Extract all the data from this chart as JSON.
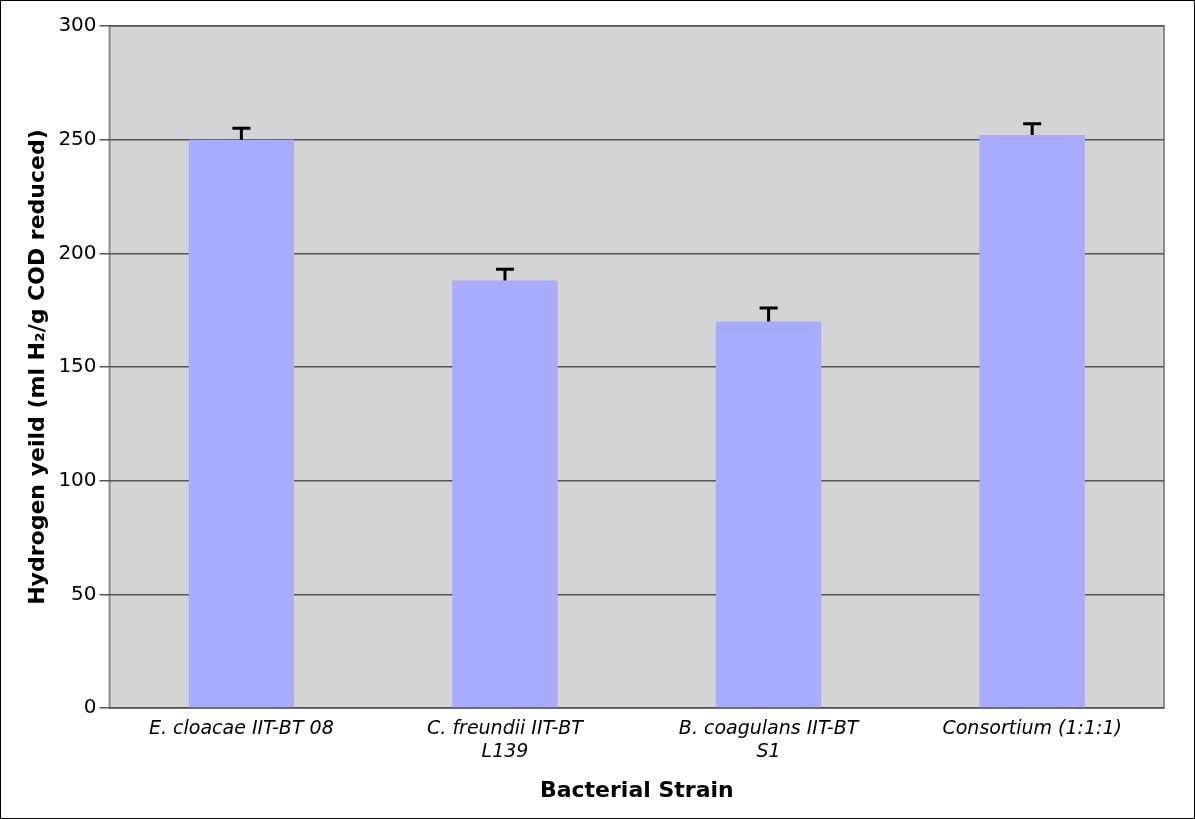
{
  "chart_data": {
    "type": "bar",
    "xlabel": "Bacterial Strain",
    "ylabel": "Hydrogen yeild (ml H₂/g COD reduced)",
    "categories": [
      "E. cloacae IIT-BT 08",
      "C. freundii IIT-BT L139",
      "B. coagulans IIT-BT S1",
      "Consortium (1:1:1)"
    ],
    "values": [
      250,
      188,
      170,
      252
    ],
    "errors": [
      [
        250,
        255
      ],
      [
        188,
        193
      ],
      [
        170,
        176
      ],
      [
        252,
        257
      ]
    ],
    "color": "#a8acff",
    "ylim": [
      0,
      300
    ],
    "yticks": [
      0,
      50,
      100,
      150,
      200,
      250,
      300
    ],
    "grid": "y",
    "legend": false
  }
}
